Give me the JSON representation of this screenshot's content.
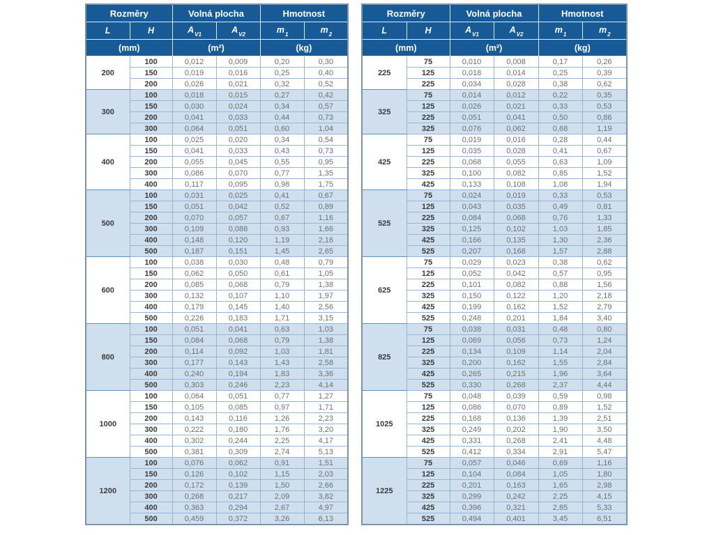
{
  "colors": {
    "header_bg": "#175a96",
    "header_text": "#ffffff",
    "band_bg": "#cfdfee",
    "grid_line": "#93b6d6",
    "group_line": "#5f90bd",
    "outer_border": "#7d93a8",
    "data_text": "#6d6e71",
    "bold_text": "#3a3a3c"
  },
  "header": {
    "dimensions": "Rozměry",
    "free_area": "Volná plocha",
    "weight": "Hmotnost",
    "columns": [
      {
        "base": "L",
        "sub": ""
      },
      {
        "base": "H",
        "sub": ""
      },
      {
        "base": "A",
        "sub": "V1"
      },
      {
        "base": "A",
        "sub": "V2"
      },
      {
        "base": "m",
        "sub": "1"
      },
      {
        "base": "m",
        "sub": "2"
      }
    ],
    "units": [
      "(mm)",
      "(m²)",
      "(kg)"
    ]
  },
  "tables": [
    {
      "name": "left-table",
      "groups": [
        {
          "L": "200",
          "rows": [
            [
              "100",
              "0,012",
              "0,009",
              "0,20",
              "0,30"
            ],
            [
              "150",
              "0,019",
              "0,016",
              "0,25",
              "0,40"
            ],
            [
              "200",
              "0,026",
              "0,021",
              "0,32",
              "0,52"
            ]
          ]
        },
        {
          "L": "300",
          "rows": [
            [
              "100",
              "0,018",
              "0,015",
              "0,27",
              "0,42"
            ],
            [
              "150",
              "0,030",
              "0,024",
              "0,34",
              "0,57"
            ],
            [
              "200",
              "0,041",
              "0,033",
              "0,44",
              "0,73"
            ],
            [
              "300",
              "0,064",
              "0,051",
              "0,60",
              "1,04"
            ]
          ]
        },
        {
          "L": "400",
          "rows": [
            [
              "100",
              "0,025",
              "0,020",
              "0,34",
              "0,54"
            ],
            [
              "150",
              "0,041",
              "0,033",
              "0,43",
              "0,73"
            ],
            [
              "200",
              "0,055",
              "0,045",
              "0,55",
              "0,95"
            ],
            [
              "300",
              "0,086",
              "0,070",
              "0,77",
              "1,35"
            ],
            [
              "400",
              "0,117",
              "0,095",
              "0,98",
              "1,75"
            ]
          ]
        },
        {
          "L": "500",
          "rows": [
            [
              "100",
              "0,031",
              "0,025",
              "0,41",
              "0,67"
            ],
            [
              "150",
              "0,051",
              "0,042",
              "0,52",
              "0,89"
            ],
            [
              "200",
              "0,070",
              "0,057",
              "0,67",
              "1,16"
            ],
            [
              "300",
              "0,109",
              "0,088",
              "0,93",
              "1,66"
            ],
            [
              "400",
              "0,148",
              "0,120",
              "1,19",
              "2,16"
            ],
            [
              "500",
              "0,187",
              "0,151",
              "1,45",
              "2,65"
            ]
          ]
        },
        {
          "L": "600",
          "rows": [
            [
              "100",
              "0,038",
              "0,030",
              "0,48",
              "0,79"
            ],
            [
              "150",
              "0,062",
              "0,050",
              "0,61",
              "1,05"
            ],
            [
              "200",
              "0,085",
              "0,068",
              "0,79",
              "1,38"
            ],
            [
              "300",
              "0,132",
              "0,107",
              "1,10",
              "1,97"
            ],
            [
              "400",
              "0,179",
              "0,145",
              "1,40",
              "2,56"
            ],
            [
              "500",
              "0,226",
              "0,183",
              "1,71",
              "3,15"
            ]
          ]
        },
        {
          "L": "800",
          "rows": [
            [
              "100",
              "0,051",
              "0,041",
              "0,63",
              "1,03"
            ],
            [
              "150",
              "0,084",
              "0,068",
              "0,79",
              "1,38"
            ],
            [
              "200",
              "0,114",
              "0,092",
              "1,03",
              "1,81"
            ],
            [
              "300",
              "0,177",
              "0,143",
              "1,43",
              "2,58"
            ],
            [
              "400",
              "0,240",
              "0,194",
              "1,83",
              "3,36"
            ],
            [
              "500",
              "0,303",
              "0,246",
              "2,23",
              "4,14"
            ]
          ]
        },
        {
          "L": "1000",
          "rows": [
            [
              "100",
              "0,064",
              "0,051",
              "0,77",
              "1,27"
            ],
            [
              "150",
              "0,105",
              "0,085",
              "0,97",
              "1,71"
            ],
            [
              "200",
              "0,143",
              "0,116",
              "1,26",
              "2,23"
            ],
            [
              "300",
              "0,222",
              "0,180",
              "1,76",
              "3,20"
            ],
            [
              "400",
              "0,302",
              "0,244",
              "2,25",
              "4,17"
            ],
            [
              "500",
              "0,381",
              "0,309",
              "2,74",
              "5,13"
            ]
          ]
        },
        {
          "L": "1200",
          "rows": [
            [
              "100",
              "0,076",
              "0,062",
              "0,91",
              "1,51"
            ],
            [
              "150",
              "0,126",
              "0,102",
              "1,15",
              "2,03"
            ],
            [
              "200",
              "0,172",
              "0,139",
              "1,50",
              "2,66"
            ],
            [
              "300",
              "0,268",
              "0,217",
              "2,09",
              "3,82"
            ],
            [
              "400",
              "0,363",
              "0,294",
              "2,67",
              "4,97"
            ],
            [
              "500",
              "0,459",
              "0,372",
              "3,26",
              "6,13"
            ]
          ]
        }
      ]
    },
    {
      "name": "right-table",
      "groups": [
        {
          "L": "225",
          "rows": [
            [
              "75",
              "0,010",
              "0,008",
              "0,17",
              "0,26"
            ],
            [
              "125",
              "0,018",
              "0,014",
              "0,25",
              "0,39"
            ],
            [
              "225",
              "0,034",
              "0,028",
              "0,38",
              "0,62"
            ]
          ]
        },
        {
          "L": "325",
          "rows": [
            [
              "75",
              "0,014",
              "0,012",
              "0,22",
              "0,35"
            ],
            [
              "125",
              "0,026",
              "0,021",
              "0,33",
              "0,53"
            ],
            [
              "225",
              "0,051",
              "0,041",
              "0,50",
              "0,86"
            ],
            [
              "325",
              "0,076",
              "0,062",
              "0,68",
              "1,19"
            ]
          ]
        },
        {
          "L": "425",
          "rows": [
            [
              "75",
              "0,019",
              "0,016",
              "0,28",
              "0,44"
            ],
            [
              "125",
              "0,035",
              "0,028",
              "0,41",
              "0,67"
            ],
            [
              "225",
              "0,068",
              "0,055",
              "0,63",
              "1,09"
            ],
            [
              "325",
              "0,100",
              "0,082",
              "0,85",
              "1,52"
            ],
            [
              "425",
              "0,133",
              "0,108",
              "1,08",
              "1,94"
            ]
          ]
        },
        {
          "L": "525",
          "rows": [
            [
              "75",
              "0,024",
              "0,019",
              "0,33",
              "0,53"
            ],
            [
              "125",
              "0,043",
              "0,035",
              "0,49",
              "0,81"
            ],
            [
              "225",
              "0,084",
              "0,068",
              "0,76",
              "1,33"
            ],
            [
              "325",
              "0,125",
              "0,102",
              "1,03",
              "1,85"
            ],
            [
              "425",
              "0,166",
              "0,135",
              "1,30",
              "2,36"
            ],
            [
              "525",
              "0,207",
              "0,168",
              "1,57",
              "2,88"
            ]
          ]
        },
        {
          "L": "625",
          "rows": [
            [
              "75",
              "0,029",
              "0,023",
              "0,38",
              "0,62"
            ],
            [
              "125",
              "0,052",
              "0,042",
              "0,57",
              "0,95"
            ],
            [
              "225",
              "0,101",
              "0,082",
              "0,88",
              "1,56"
            ],
            [
              "325",
              "0,150",
              "0,122",
              "1,20",
              "2,18"
            ],
            [
              "425",
              "0,199",
              "0,162",
              "1,52",
              "2,79"
            ],
            [
              "525",
              "0,248",
              "0,201",
              "1,84",
              "3,40"
            ]
          ]
        },
        {
          "L": "825",
          "rows": [
            [
              "75",
              "0,038",
              "0,031",
              "0,48",
              "0,80"
            ],
            [
              "125",
              "0,069",
              "0,056",
              "0,73",
              "1,24"
            ],
            [
              "225",
              "0,134",
              "0,109",
              "1,14",
              "2,04"
            ],
            [
              "325",
              "0,200",
              "0,162",
              "1,55",
              "2,84"
            ],
            [
              "425",
              "0,265",
              "0,215",
              "1,96",
              "3,64"
            ],
            [
              "525",
              "0,330",
              "0,268",
              "2,37",
              "4,44"
            ]
          ]
        },
        {
          "L": "1025",
          "rows": [
            [
              "75",
              "0,048",
              "0,039",
              "0,59",
              "0,98"
            ],
            [
              "125",
              "0,086",
              "0,070",
              "0,89",
              "1,52"
            ],
            [
              "225",
              "0,168",
              "0,136",
              "1,39",
              "2,51"
            ],
            [
              "325",
              "0,249",
              "0,202",
              "1,90",
              "3,50"
            ],
            [
              "425",
              "0,331",
              "0,268",
              "2,41",
              "4,48"
            ],
            [
              "525",
              "0,412",
              "0,334",
              "2,91",
              "5,47"
            ]
          ]
        },
        {
          "L": "1225",
          "rows": [
            [
              "75",
              "0,057",
              "0,046",
              "0,69",
              "1,16"
            ],
            [
              "125",
              "0,104",
              "0,084",
              "1,05",
              "1,80"
            ],
            [
              "225",
              "0,201",
              "0,163",
              "1,65",
              "2,98"
            ],
            [
              "325",
              "0,299",
              "0,242",
              "2,25",
              "4,15"
            ],
            [
              "425",
              "0,396",
              "0,321",
              "2,85",
              "5,33"
            ],
            [
              "525",
              "0,494",
              "0,401",
              "3,45",
              "6,51"
            ]
          ]
        }
      ]
    }
  ]
}
